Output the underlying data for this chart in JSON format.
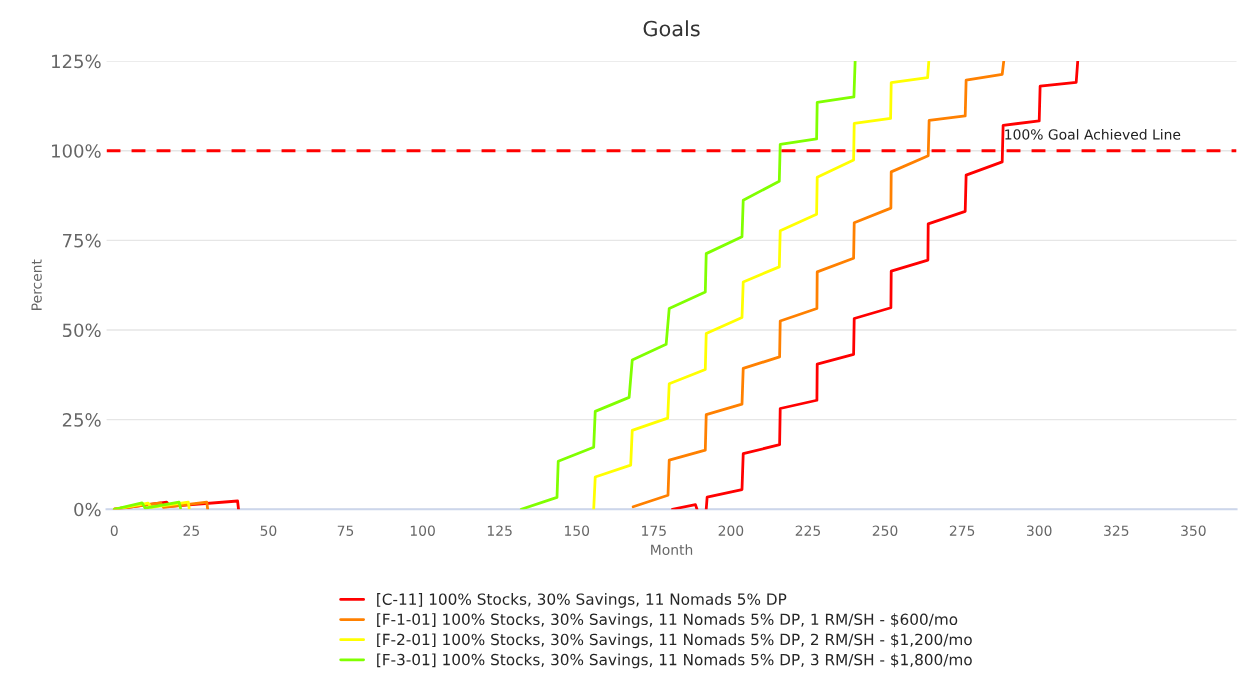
{
  "chart_data": {
    "type": "line",
    "title": "Goals",
    "xlabel": "Month",
    "ylabel": "Percent",
    "xlim": [
      -2.5,
      364
    ],
    "xticks": [
      0,
      25,
      50,
      75,
      100,
      125,
      150,
      175,
      200,
      225,
      250,
      275,
      300,
      325,
      350
    ],
    "ylim": [
      0,
      125
    ],
    "yticks": [
      {
        "value": 0,
        "label": "0%"
      },
      {
        "value": 25,
        "label": "25%"
      },
      {
        "value": 50,
        "label": "50%"
      },
      {
        "value": 75,
        "label": "75%"
      },
      {
        "value": 100,
        "label": "100%"
      },
      {
        "value": 125,
        "label": "125%"
      }
    ],
    "grid": "y",
    "legend": "bottom",
    "line_style": "solid",
    "ref_lines": [
      {
        "axis": "y",
        "value": 100,
        "label": "100% Goal Achieved Line",
        "color": "#ff0000",
        "line_style": "dashed"
      }
    ],
    "series": [
      {
        "name": "[C-11] 100% Stocks, 30% Savings, 11 Nomads 5% DP",
        "color": "#ff0000",
        "x": [
          0,
          17,
          18,
          40,
          40.3,
          100,
          181,
          188.5,
          189,
          190,
          192,
          192.3,
          203.6,
          204,
          215.8,
          216,
          227.9,
          228,
          239.8,
          240,
          251.9,
          252,
          263.9,
          264,
          276,
          276.3,
          288,
          288.3,
          300,
          300.3,
          312,
          312.5
        ],
        "values": [
          0,
          2,
          0.8,
          2.3,
          0,
          null,
          0,
          1.3,
          0,
          null,
          0,
          3.4,
          5.5,
          15.5,
          18,
          28.1,
          30.4,
          40.5,
          43.2,
          53.2,
          56.2,
          66.4,
          69.5,
          79.6,
          83.1,
          93.2,
          96.9,
          107.1,
          108.3,
          118,
          119.1,
          125
        ]
      },
      {
        "name": "[F-1-01] 100% Stocks, 30% Savings, 11 Nomads 5% DP, 1 RM/SH - $600/mo",
        "color": "#ff8000",
        "x": [
          0,
          15,
          16,
          30,
          30.3,
          100,
          168.3,
          179.6,
          180,
          191.7,
          192,
          203.6,
          204,
          215.8,
          216,
          227.9,
          228,
          239.8,
          240,
          251.9,
          252,
          264,
          264.3,
          276,
          276.3,
          288,
          288.5
        ],
        "values": [
          0,
          1.8,
          0.5,
          2,
          0,
          null,
          0.7,
          3.9,
          13.7,
          16.5,
          26.4,
          29.3,
          39.3,
          42.5,
          52.5,
          56,
          66.2,
          70,
          79.9,
          84,
          94.1,
          98.6,
          108.5,
          109.7,
          119.7,
          121.3,
          125
        ]
      },
      {
        "name": "[F-2-01] 100% Stocks, 30% Savings, 11 Nomads 5% DP, 2 RM/SH - $1,200/mo",
        "color": "#ffff00",
        "x": [
          0,
          11,
          12,
          24,
          24.3,
          100,
          155.5,
          156,
          167.5,
          168,
          179.5,
          180,
          191.7,
          192,
          203.6,
          204,
          215.7,
          216,
          227.8,
          228,
          239.8,
          240,
          251.8,
          252,
          263.8,
          264.2
        ],
        "values": [
          0,
          1.7,
          0.5,
          2,
          0.3,
          null,
          0,
          9,
          12.3,
          22,
          25.4,
          35,
          39,
          49,
          53.5,
          63.4,
          67.6,
          77.7,
          82.3,
          92.6,
          97.4,
          107.6,
          109,
          119,
          120.4,
          125
        ]
      },
      {
        "name": "[F-3-01] 100% Stocks, 30% Savings, 11 Nomads 5% DP, 3 RM/SH - $1,800/mo",
        "color": "#80ff00",
        "x": [
          0,
          9,
          10,
          21,
          21.5,
          100,
          132,
          143.6,
          144,
          155.5,
          156,
          167,
          168,
          179,
          180,
          191.7,
          192,
          203.6,
          204,
          215.7,
          216,
          227.8,
          228,
          239.9,
          240.3
        ],
        "values": [
          0,
          1.8,
          0.3,
          2,
          0.3,
          null,
          0,
          3.3,
          13.4,
          17.3,
          27.3,
          31.2,
          41.6,
          46,
          56,
          60.6,
          71.3,
          76,
          86.2,
          91.5,
          101.8,
          103.3,
          113.5,
          115,
          125
        ]
      }
    ]
  }
}
